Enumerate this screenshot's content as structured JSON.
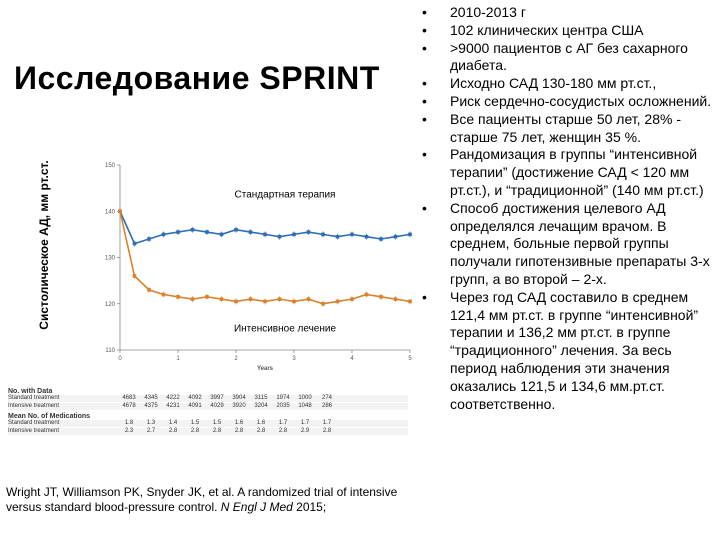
{
  "title": "Исследование SPRINT",
  "y_axis_label": "Систолическое АД, мм рт.ст.",
  "chart_data": {
    "type": "line",
    "x": [
      0,
      0.25,
      0.5,
      0.75,
      1,
      1.25,
      1.5,
      1.75,
      2,
      2.25,
      2.5,
      2.75,
      3,
      3.25,
      3.5,
      3.75,
      4,
      4.25,
      4.5,
      4.75,
      5
    ],
    "xticks": [
      "0",
      "1",
      "2",
      "3",
      "4",
      "5"
    ],
    "xlabel": "Years",
    "yticks": [
      "110",
      "120",
      "130",
      "140",
      "150"
    ],
    "ylim": [
      110,
      150
    ],
    "series": [
      {
        "name": "Стандартная терапия",
        "color": "#2e6db4",
        "values": [
          140,
          133,
          134,
          135,
          135.5,
          136,
          135.5,
          135,
          136,
          135.5,
          135,
          134.5,
          135,
          135.5,
          135,
          134.5,
          135,
          134.5,
          134,
          134.5,
          135
        ]
      },
      {
        "name": "Интенсивное лечение",
        "color": "#d9822b",
        "values": [
          140,
          126,
          123,
          122,
          121.5,
          121,
          121.5,
          121,
          120.5,
          121,
          120.5,
          121,
          120.5,
          121,
          120,
          120.5,
          121,
          122,
          121.5,
          121,
          120.5
        ]
      }
    ]
  },
  "tables": {
    "data_heading": "No. with Data",
    "data_rows": [
      {
        "label": "Standard treatment",
        "values": [
          "4683",
          "4345",
          "4222",
          "4092",
          "3997",
          "3904",
          "3115",
          "1974",
          "1000",
          "274"
        ]
      },
      {
        "label": "Intensive treatment",
        "values": [
          "4678",
          "4375",
          "4231",
          "4091",
          "4029",
          "3920",
          "3204",
          "2035",
          "1048",
          "286"
        ]
      }
    ],
    "meds_heading": "Mean No. of Medications",
    "meds_rows": [
      {
        "label": "Standard treatment",
        "values": [
          "1.8",
          "1.3",
          "1.4",
          "1.5",
          "1.5",
          "1.6",
          "1.6",
          "1.7",
          "1.7",
          "1.7"
        ]
      },
      {
        "label": "Intensive treatment",
        "values": [
          "2.3",
          "2.7",
          "2.8",
          "2.8",
          "2.8",
          "2.8",
          "2.8",
          "2.8",
          "2.9",
          "2.8"
        ]
      }
    ]
  },
  "citation": {
    "authors": "Wright JT, Williamson PK, Snyder JK, et al. A randomized trial of intensive versus standard blood-pressure control. ",
    "journal": "N Engl J Med",
    "year": " 2015;"
  },
  "bullets": [
    "2010-2013 г",
    "102 клинических центра США",
    ">9000 пациентов с АГ без сахарного диабета.",
    "Исходно САД 130-180 мм рт.ст.,",
    "Риск сердечно-сосудистых осложнений.",
    "Все пациенты старше 50 лет, 28% - старше 75 лет, женщин 35 %.",
    "Рандомизация в группы “интенсивной терапии” (достижение САД < 120 мм рт.ст.), и “традиционной” (140 мм рт.ст.)",
    "Способ достижения целевого АД определялся лечащим врачом. В среднем, больные первой группы получали гипотензивные препараты 3-х групп, а во второй – 2-х.",
    "Через год САД составило в среднем 121,4 мм рт.ст. в группе “интенсивной” терапии и 136,2 мм рт.ст. в группе “традиционного” лечения. За весь период наблюдения эти значения оказались 121,5 и 134,6 мм.рт.ст. соответственно."
  ],
  "bullet_glyph": "•"
}
